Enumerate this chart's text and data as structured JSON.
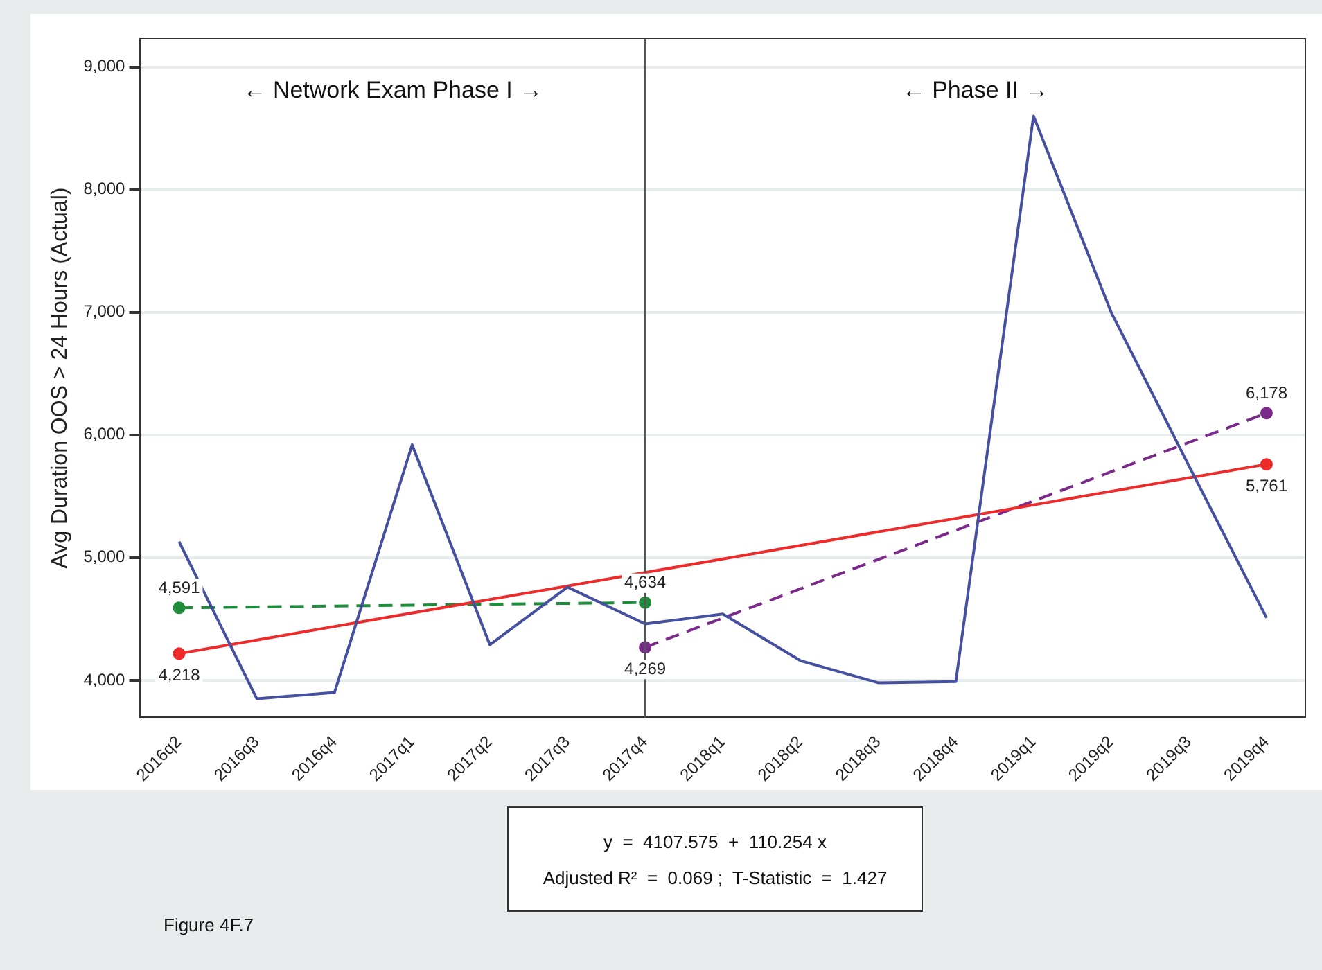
{
  "chart_data": {
    "type": "line",
    "ylabel": "Avg Duration OOS > 24 Hours (Actual)",
    "categories": [
      "2016q2",
      "2016q3",
      "2016q4",
      "2017q1",
      "2017q2",
      "2017q3",
      "2017q4",
      "2018q1",
      "2018q2",
      "2018q3",
      "2018q4",
      "2019q1",
      "2019q2",
      "2019q3",
      "2019q4"
    ],
    "series": [
      {
        "color": "#4650a0",
        "marker": "none",
        "line_style": "solid",
        "values": [
          5130,
          3850,
          3900,
          5920,
          4290,
          4760,
          4460,
          4540,
          4160,
          3980,
          3990,
          8600,
          7000,
          5750,
          4510
        ]
      },
      {
        "color": "#ee2a2a",
        "marker": "circle",
        "line_style": "solid",
        "values": [
          4218,
          null,
          null,
          null,
          null,
          null,
          null,
          null,
          null,
          null,
          null,
          null,
          null,
          null,
          5761
        ],
        "value_labels": [
          "4,218",
          null,
          null,
          null,
          null,
          null,
          null,
          null,
          null,
          null,
          null,
          null,
          null,
          null,
          "5,761"
        ]
      },
      {
        "color": "#1e8c3a",
        "marker": "circle",
        "line_style": "dashed",
        "values": [
          4591,
          null,
          null,
          null,
          null,
          null,
          4634,
          null,
          null,
          null,
          null,
          null,
          null,
          null,
          null
        ],
        "value_labels": [
          "4,591",
          null,
          null,
          null,
          null,
          null,
          "4,634",
          null,
          null,
          null,
          null,
          null,
          null,
          null,
          null
        ]
      },
      {
        "color": "#7b2a8c",
        "marker": "circle",
        "line_style": "dashed",
        "values": [
          null,
          null,
          null,
          null,
          null,
          null,
          4269,
          null,
          null,
          null,
          null,
          null,
          null,
          null,
          6178
        ],
        "value_labels": [
          null,
          null,
          null,
          null,
          null,
          null,
          "4,269",
          null,
          null,
          null,
          null,
          null,
          null,
          null,
          "6,178"
        ]
      }
    ],
    "ylim": [
      3700,
      9230
    ],
    "yticks": [
      {
        "value": 4000,
        "label": "4,000"
      },
      {
        "value": 5000,
        "label": "5,000"
      },
      {
        "value": 6000,
        "label": "6,000"
      },
      {
        "value": 7000,
        "label": "7,000"
      },
      {
        "value": 8000,
        "label": "8,000"
      },
      {
        "value": 9000,
        "label": "9,000"
      }
    ],
    "grid": "y",
    "legend": false,
    "ref_lines": [
      {
        "axis": "x",
        "value": "2017q4",
        "color": "#555555"
      }
    ],
    "annotations": [
      "← Network Exam Phase I →",
      "← Phase II →",
      "y  =  4107.575  +  110.254 x",
      "Adjusted R²  =  0.069 ;  T-Statistic  =  1.427",
      "Figure 4F.7"
    ]
  }
}
